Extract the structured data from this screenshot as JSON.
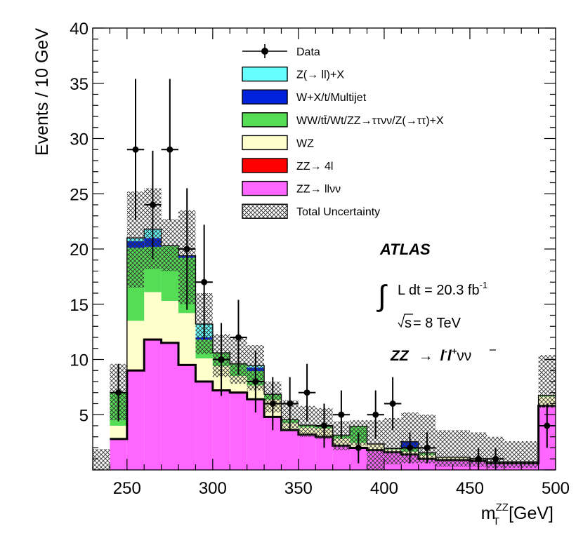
{
  "chart_data": {
    "type": "bar",
    "stacked": true,
    "xlabel_main": "m",
    "xlabel_sup": "ZZ",
    "xlabel_sub": "T",
    "xlabel_unit": "[GeV]",
    "ylabel": "Events / 10 GeV",
    "xlim": [
      230,
      500
    ],
    "ylim": [
      0,
      40
    ],
    "x_ticks": [
      250,
      300,
      350,
      400,
      450,
      500
    ],
    "x_tick_labels": [
      "250",
      "300",
      "350",
      "400",
      "450",
      "500"
    ],
    "y_ticks": [
      5,
      10,
      15,
      20,
      25,
      30,
      35,
      40
    ],
    "y_tick_labels": [
      "5",
      "10",
      "15",
      "20",
      "25",
      "30",
      "35",
      "40"
    ],
    "bin_edges": [
      240,
      250,
      260,
      270,
      280,
      290,
      300,
      310,
      320,
      330,
      340,
      350,
      360,
      370,
      380,
      390,
      400,
      410,
      420,
      430,
      440,
      450,
      460,
      470,
      480,
      490,
      500
    ],
    "series": [
      {
        "name": "ZZ→ llνν",
        "color": "#ff66ff",
        "values": [
          2.8,
          9.0,
          11.8,
          11.5,
          9.5,
          8.0,
          7.2,
          7.0,
          6.4,
          4.8,
          3.6,
          3.2,
          3.0,
          2.2,
          2.0,
          1.8,
          1.6,
          1.4,
          1.0,
          0.9,
          0.9,
          0.8,
          0.6,
          0.6,
          0.6,
          5.8
        ]
      },
      {
        "name": "ZZ→ 4l",
        "color": "#ff0000",
        "values": [
          0.05,
          0.1,
          0.1,
          0.1,
          0.1,
          0.1,
          0.1,
          0.1,
          0.05,
          0.05,
          0.05,
          0.05,
          0.05,
          0.05,
          0.05,
          0.05,
          0.05,
          0.05,
          0.05,
          0.05,
          0.05,
          0.05,
          0.05,
          0.05,
          0.05,
          0.05
        ]
      },
      {
        "name": "WZ",
        "color": "#ffffcc",
        "values": [
          1.15,
          4.4,
          4.2,
          3.7,
          4.6,
          2.0,
          2.1,
          1.4,
          1.2,
          1.5,
          0.6,
          0.6,
          0.7,
          0.6,
          0.4,
          0.5,
          0.2,
          0.2,
          0.3,
          0.2,
          0.2,
          0.15,
          0.1,
          0.1,
          0.1,
          0.8
        ]
      },
      {
        "name": "WW/tt̄/Wt/ZZ→ττνν/Z(→ττ)+X",
        "color": "#55dd55",
        "values": [
          3.0,
          6.6,
          4.1,
          5.0,
          5.0,
          1.7,
          1.2,
          1.1,
          1.3,
          0.5,
          0.3,
          0.2,
          0.2,
          0.3,
          1.5,
          0.0,
          0.1,
          0.3,
          0.2,
          0.0,
          0.0,
          0.0,
          0.0,
          0.0,
          0.0,
          0.1
        ]
      },
      {
        "name": "W+X/t/Multijet",
        "color": "#0022dd",
        "values": [
          0.0,
          0.6,
          0.8,
          0.0,
          0.2,
          0.2,
          0.0,
          0.0,
          0.3,
          0.0,
          0.0,
          0.0,
          0.0,
          0.0,
          0.0,
          0.0,
          0.0,
          0.6,
          0.0,
          0.0,
          0.0,
          0.0,
          0.0,
          0.0,
          0.0,
          0.0
        ]
      },
      {
        "name": "Z(→ ll)+X",
        "color": "#66ffff",
        "values": [
          0.0,
          0.3,
          0.8,
          0.0,
          0.0,
          1.2,
          0.0,
          0.0,
          0.2,
          0.0,
          0.0,
          0.0,
          0.0,
          0.0,
          0.0,
          0.0,
          0.0,
          0.0,
          0.0,
          0.0,
          0.0,
          0.0,
          0.0,
          0.0,
          0.0,
          0.0
        ]
      }
    ],
    "uncertainty": {
      "name": "Total Uncertainty",
      "bins": [
        {
          "x0": 230,
          "x1": 240,
          "lo": 0.0,
          "hi": 1.9
        },
        {
          "x0": 240,
          "x1": 250,
          "lo": 4.5,
          "hi": 9.6
        },
        {
          "x0": 250,
          "x1": 260,
          "lo": 16.5,
          "hi": 25.2
        },
        {
          "x0": 260,
          "x1": 270,
          "lo": 18.2,
          "hi": 25.5
        },
        {
          "x0": 270,
          "x1": 280,
          "lo": 18.0,
          "hi": 22.7
        },
        {
          "x0": 280,
          "x1": 290,
          "lo": 15.0,
          "hi": 23.5
        },
        {
          "x0": 290,
          "x1": 300,
          "lo": 10.5,
          "hi": 16.0
        },
        {
          "x0": 300,
          "x1": 310,
          "lo": 8.4,
          "hi": 12.3
        },
        {
          "x0": 310,
          "x1": 320,
          "lo": 7.8,
          "hi": 12.0
        },
        {
          "x0": 320,
          "x1": 330,
          "lo": 7.2,
          "hi": 11.3
        },
        {
          "x0": 330,
          "x1": 340,
          "lo": 5.2,
          "hi": 8.0
        },
        {
          "x0": 340,
          "x1": 350,
          "lo": 3.5,
          "hi": 6.3
        },
        {
          "x0": 350,
          "x1": 360,
          "lo": 3.0,
          "hi": 5.8
        },
        {
          "x0": 360,
          "x1": 370,
          "lo": 2.8,
          "hi": 5.6
        },
        {
          "x0": 370,
          "x1": 380,
          "lo": 1.8,
          "hi": 4.4
        },
        {
          "x0": 380,
          "x1": 390,
          "lo": 2.2,
          "hi": 4.5
        },
        {
          "x0": 390,
          "x1": 400,
          "lo": 0.0,
          "hi": 4.5
        },
        {
          "x0": 400,
          "x1": 410,
          "lo": 0.5,
          "hi": 4.7
        },
        {
          "x0": 410,
          "x1": 420,
          "lo": 0.6,
          "hi": 5.2
        },
        {
          "x0": 420,
          "x1": 430,
          "lo": 0.6,
          "hi": 5.0
        },
        {
          "x0": 430,
          "x1": 440,
          "lo": 0.3,
          "hi": 3.6
        },
        {
          "x0": 440,
          "x1": 450,
          "lo": 0.3,
          "hi": 3.6
        },
        {
          "x0": 450,
          "x1": 460,
          "lo": 0.3,
          "hi": 3.4
        },
        {
          "x0": 460,
          "x1": 470,
          "lo": 0.2,
          "hi": 3.0
        },
        {
          "x0": 470,
          "x1": 480,
          "lo": 0.2,
          "hi": 2.6
        },
        {
          "x0": 480,
          "x1": 490,
          "lo": 0.2,
          "hi": 2.6
        },
        {
          "x0": 490,
          "x1": 500,
          "lo": 5.6,
          "hi": 10.4
        }
      ]
    },
    "data": {
      "name": "Data",
      "points": [
        {
          "x": 245,
          "y": 7,
          "err": 2.6
        },
        {
          "x": 255,
          "y": 29,
          "err": 6.4
        },
        {
          "x": 265,
          "y": 24,
          "err": 4.9
        },
        {
          "x": 275,
          "y": 29,
          "err": 6.4
        },
        {
          "x": 285,
          "y": 20,
          "err": 5.5
        },
        {
          "x": 295,
          "y": 17,
          "err": 5.2
        },
        {
          "x": 305,
          "y": 10,
          "err": 3.3
        },
        {
          "x": 315,
          "y": 12,
          "err": 3.4
        },
        {
          "x": 325,
          "y": 8,
          "err": 2.8
        },
        {
          "x": 335,
          "y": 6,
          "err": 2.4
        },
        {
          "x": 345,
          "y": 6,
          "err": 2.4
        },
        {
          "x": 355,
          "y": 7,
          "err": 2.6
        },
        {
          "x": 365,
          "y": 4,
          "err": 2.0
        },
        {
          "x": 375,
          "y": 5,
          "err": 2.2
        },
        {
          "x": 385,
          "y": 2,
          "err": 1.4
        },
        {
          "x": 395,
          "y": 5,
          "err": 2.2
        },
        {
          "x": 405,
          "y": 6,
          "err": 2.4
        },
        {
          "x": 415,
          "y": 2,
          "err": 1.4
        },
        {
          "x": 425,
          "y": 2,
          "err": 1.4
        },
        {
          "x": 455,
          "y": 1,
          "err": 1.0
        },
        {
          "x": 465,
          "y": 1,
          "err": 1.0
        },
        {
          "x": 495,
          "y": 4,
          "err": 2.0
        }
      ]
    },
    "legend": {
      "placement": "top-center",
      "entries": [
        {
          "label": "Data",
          "kind": "data"
        },
        {
          "label": "Z(→ ll)+X",
          "kind": "fill",
          "color": "#66ffff"
        },
        {
          "label": "W+X/t/Multijet",
          "kind": "fill",
          "color": "#0022dd"
        },
        {
          "label": "WW/tt̄/Wt/ZZ→ττνν/Z(→ττ)+X",
          "kind": "fill",
          "color": "#55dd55"
        },
        {
          "label": "WZ",
          "kind": "fill",
          "color": "#ffffcc"
        },
        {
          "label": "ZZ→ 4l",
          "kind": "fill",
          "color": "#ff0000"
        },
        {
          "label": "ZZ→ llνν",
          "kind": "fill",
          "color": "#ff66ff"
        },
        {
          "label": "Total Uncertainty",
          "kind": "hatch"
        }
      ]
    },
    "annotations": {
      "experiment": "ATLAS",
      "lumi_prefix": "L dt = 20.3 fb",
      "lumi_exponent": "-1",
      "energy_root": "s",
      "energy_rest": "= 8 TeV",
      "process_zz": "ZZ",
      "process_arrow": "→",
      "process_l1": "l",
      "process_l1_charge": "-",
      "process_l2": "l",
      "process_l2_charge": "+",
      "process_nu": "νν"
    }
  }
}
